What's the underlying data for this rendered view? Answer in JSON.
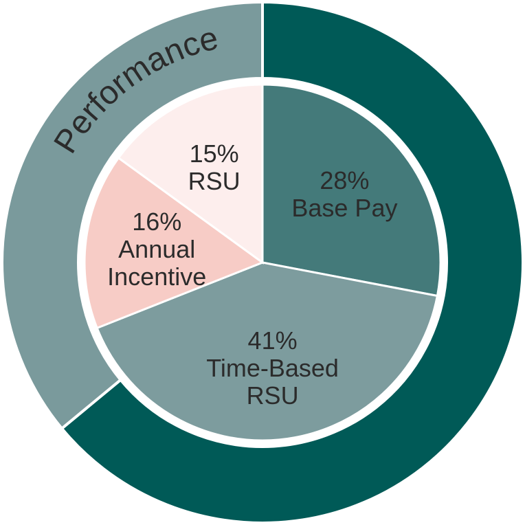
{
  "chart_data": [
    {
      "type": "donut",
      "categories": [
        null,
        "Performance"
      ],
      "values": [
        64,
        36
      ],
      "colors": [
        "#005a57",
        "#7a9a9c"
      ]
    },
    {
      "type": "pie",
      "categories": [
        "Base Pay",
        "Time-Based RSU",
        "Annual Incentive",
        "RSU"
      ],
      "values": [
        28,
        41,
        16,
        15
      ],
      "value_labels": [
        "28%",
        "41%",
        "16%",
        "15%"
      ],
      "colors": [
        "#447a7a",
        "#7d9c9e",
        "#f7ccc6",
        "#fdeeed"
      ]
    }
  ]
}
